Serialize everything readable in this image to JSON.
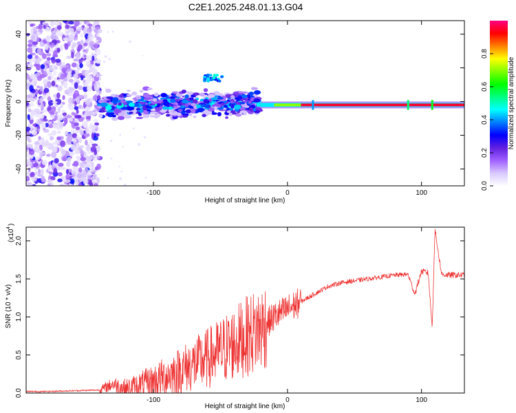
{
  "title": "C2E1.2025.248.01.13.G04",
  "chart_data": [
    {
      "type": "heatmap",
      "title": "C2E1.2025.248.01.13.G04",
      "xlabel": "Height of straight line (km)",
      "ylabel": "Frequency (Hz)",
      "xlim": [
        -195,
        132
      ],
      "ylim": [
        -50,
        48
      ],
      "xticks": [
        -100,
        0,
        100
      ],
      "yticks": [
        40,
        20,
        0,
        -20,
        -40
      ],
      "colorbar": {
        "label": "Normalized spectral amplitude",
        "range": [
          0,
          1
        ],
        "ticks": [
          "0.0",
          "0.2",
          "0.4",
          "0.6",
          "0.8"
        ],
        "colors": [
          "#ffffff",
          "#d8c8ff",
          "#a060ff",
          "#6020e0",
          "#0000ff",
          "#0080ff",
          "#00ffff",
          "#00ff80",
          "#00ff00",
          "#80ff00",
          "#ffff00",
          "#ff8000",
          "#ff0000",
          "#ff0080"
        ]
      },
      "regions": [
        {
          "name": "noise",
          "x": [
            -195,
            -140
          ],
          "amplitude": 0.15
        },
        {
          "name": "rising signal",
          "x": [
            -140,
            -20
          ],
          "center_hz": -2.5,
          "spread_hz": 7,
          "amplitude": 0.4
        },
        {
          "name": "stable carrier",
          "x": [
            -20,
            132
          ],
          "center_hz": -2,
          "amplitude": 0.95
        }
      ]
    },
    {
      "type": "line",
      "xlabel": "Height of straight line (km)",
      "ylabel": "SNR (10 * v/v)",
      "scale_label": "(x10",
      "scale_exponent": "4",
      "xlim": [
        -195,
        132
      ],
      "ylim": [
        0,
        2.18
      ],
      "xticks": [
        -100,
        0,
        100
      ],
      "yticks": [
        "0.0",
        "0.5",
        "1.0",
        "1.5",
        "2.0"
      ],
      "color": "#ee3333",
      "series": [
        {
          "name": "SNR",
          "x": [
            -195,
            -180,
            -160,
            -140,
            -130,
            -120,
            -100,
            -80,
            -60,
            -40,
            -20,
            -10,
            0,
            10,
            20,
            30,
            40,
            60,
            80,
            90,
            95,
            100,
            105,
            108,
            110,
            115,
            120,
            132
          ],
          "y": [
            0.02,
            0.02,
            0.03,
            0.04,
            0.12,
            0.05,
            0.15,
            0.3,
            0.45,
            0.65,
            0.85,
            1.0,
            1.1,
            1.2,
            1.3,
            1.4,
            1.45,
            1.5,
            1.55,
            1.56,
            1.3,
            1.6,
            1.58,
            0.85,
            2.15,
            1.56,
            1.55,
            1.55
          ]
        }
      ]
    }
  ]
}
